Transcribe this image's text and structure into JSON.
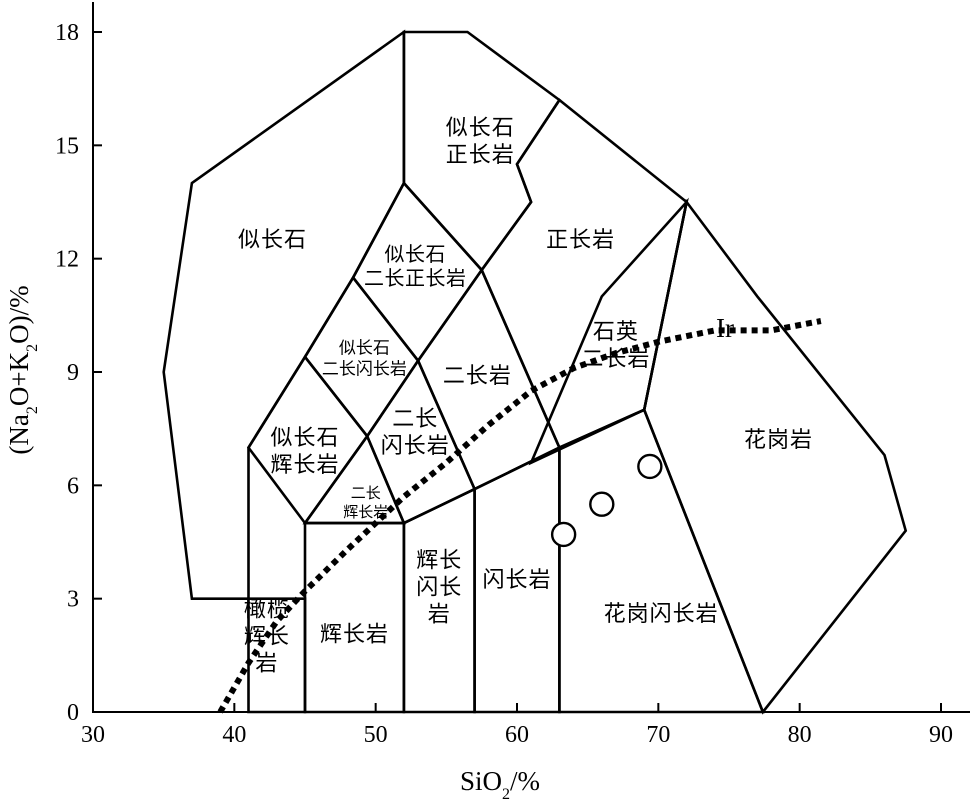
{
  "chart_data": {
    "type": "scatter",
    "xlabel": "SiO2/%",
    "ylabel": "(Na2O+K2O)/%",
    "xlim": [
      30,
      92
    ],
    "ylim": [
      0,
      18.5
    ],
    "x_ticks": [
      30,
      40,
      50,
      60,
      70,
      80,
      90
    ],
    "y_ticks": [
      0,
      3,
      6,
      9,
      12,
      15,
      18
    ],
    "grid": false,
    "samples": [
      {
        "x": 63.3,
        "y": 4.7
      },
      {
        "x": 66.0,
        "y": 5.5
      },
      {
        "x": 69.4,
        "y": 6.5
      }
    ],
    "ir_line": {
      "label": "Ir",
      "points": [
        [
          39,
          0
        ],
        [
          41,
          1.3
        ],
        [
          43,
          2.4
        ],
        [
          45,
          3.2
        ],
        [
          48,
          4.3
        ],
        [
          50,
          5.0
        ],
        [
          52,
          5.7
        ],
        [
          55,
          6.6
        ],
        [
          58,
          7.6
        ],
        [
          61,
          8.5
        ],
        [
          64,
          9.1
        ],
        [
          67,
          9.5
        ],
        [
          70,
          9.8
        ],
        [
          74,
          10.1
        ],
        [
          78,
          10.1
        ],
        [
          81.5,
          10.35
        ]
      ]
    },
    "fields": [
      {
        "label_lines": [
          "似长石",
          "正长岩"
        ],
        "points": [
          [
            52,
            18
          ],
          [
            56.5,
            18
          ],
          [
            63,
            16.2
          ],
          [
            60,
            14.5
          ],
          [
            61,
            13.5
          ],
          [
            57.5,
            11.7
          ],
          [
            52,
            14
          ]
        ],
        "label_at": [
          57.4,
          15.1
        ],
        "size": "l"
      },
      {
        "label_lines": [
          "似长石"
        ],
        "points": [
          [
            37,
            14
          ],
          [
            52,
            18
          ],
          [
            52,
            14
          ],
          [
            48.4,
            11.5
          ],
          [
            45,
            9.4
          ],
          [
            41,
            7
          ],
          [
            41,
            3
          ],
          [
            37,
            3
          ],
          [
            35,
            9
          ]
        ],
        "label_at": [
          42.7,
          12.5
        ],
        "size": "l"
      },
      {
        "label_lines": [
          "正长岩"
        ],
        "points": [
          [
            63,
            16.2
          ],
          [
            72,
            13.5
          ],
          [
            69,
            8
          ],
          [
            63,
            7
          ],
          [
            57.5,
            11.7
          ],
          [
            61,
            13.5
          ],
          [
            60,
            14.5
          ]
        ],
        "label_at": [
          64.5,
          12.5
        ],
        "size": "l"
      },
      {
        "label_lines": [
          "似长石",
          "二长正长岩"
        ],
        "points": [
          [
            52,
            14
          ],
          [
            57.5,
            11.7
          ],
          [
            53,
            9.3
          ],
          [
            48.4,
            11.5
          ]
        ],
        "label_at": [
          52.8,
          11.8
        ],
        "size": "m"
      },
      {
        "label_lines": [
          "似长石",
          "二长闪长岩"
        ],
        "points": [
          [
            48.4,
            11.5
          ],
          [
            53,
            9.3
          ],
          [
            49.4,
            7.3
          ],
          [
            45,
            9.4
          ]
        ],
        "label_at": [
          49.2,
          9.4
        ],
        "size": "s"
      },
      {
        "label_lines": [
          "二长岩"
        ],
        "points": [
          [
            57.5,
            11.7
          ],
          [
            63,
            7
          ],
          [
            57,
            5.9
          ],
          [
            53,
            9.3
          ]
        ],
        "label_at": [
          57.2,
          8.9
        ],
        "size": "l"
      },
      {
        "label_lines": [
          "石英",
          "二长岩"
        ],
        "points": [
          [
            72,
            13.5
          ],
          [
            69,
            8
          ],
          [
            61,
            6.6
          ],
          [
            66,
            11
          ]
        ],
        "label_at": [
          67,
          9.7
        ],
        "size": "l"
      },
      {
        "label_lines": [
          "似长石",
          "辉长岩"
        ],
        "points": [
          [
            45,
            9.4
          ],
          [
            49.4,
            7.3
          ],
          [
            45,
            5
          ],
          [
            41,
            7
          ]
        ],
        "label_at": [
          45,
          6.9
        ],
        "size": "l"
      },
      {
        "label_lines": [
          "二长",
          "闪长岩"
        ],
        "points": [
          [
            53,
            9.3
          ],
          [
            57,
            5.9
          ],
          [
            52,
            5
          ],
          [
            49.4,
            7.3
          ]
        ],
        "label_at": [
          52.8,
          7.4
        ],
        "size": "l"
      },
      {
        "label_lines": [
          "二长",
          "辉长岩"
        ],
        "points": [
          [
            49.4,
            7.3
          ],
          [
            52,
            5
          ],
          [
            45,
            5
          ]
        ],
        "label_at": [
          49.3,
          5.6
        ],
        "size": "xs"
      },
      {
        "label_lines": [
          "花岗岩"
        ],
        "points": [
          [
            72,
            13.5
          ],
          [
            77,
            11
          ],
          [
            86,
            6.8
          ],
          [
            87.5,
            4.8
          ],
          [
            77.4,
            0
          ],
          [
            69,
            8
          ]
        ],
        "label_at": [
          78.5,
          7.2
        ],
        "size": "l"
      },
      {
        "label_lines": [
          "花岗闪长岩"
        ],
        "points": [
          [
            63,
            7
          ],
          [
            69,
            8
          ],
          [
            77.4,
            0
          ],
          [
            63,
            0
          ]
        ],
        "label_at": [
          70.2,
          2.6
        ],
        "size": "l"
      },
      {
        "label_lines": [
          "闪长岩"
        ],
        "points": [
          [
            57,
            5.9
          ],
          [
            63,
            7
          ],
          [
            63,
            0
          ],
          [
            57,
            0
          ]
        ],
        "label_at": [
          60,
          3.5
        ],
        "size": "l"
      },
      {
        "label_lines": [
          "辉长",
          "闪长",
          "岩"
        ],
        "points": [
          [
            52,
            5
          ],
          [
            57,
            5.9
          ],
          [
            57,
            0
          ],
          [
            52,
            0
          ]
        ],
        "label_at": [
          54.5,
          3.3
        ],
        "size": "l"
      },
      {
        "label_lines": [
          "辉长岩"
        ],
        "points": [
          [
            45,
            5
          ],
          [
            52,
            5
          ],
          [
            52,
            0
          ],
          [
            45,
            0
          ]
        ],
        "label_at": [
          48.5,
          2.05
        ],
        "size": "l"
      },
      {
        "label_lines": [
          "橄榄",
          "辉长",
          "岩"
        ],
        "points": [
          [
            41,
            3
          ],
          [
            45,
            3
          ],
          [
            45,
            0
          ],
          [
            41,
            0
          ]
        ],
        "label_at": [
          42.3,
          2.0
        ],
        "size": "l"
      }
    ]
  }
}
